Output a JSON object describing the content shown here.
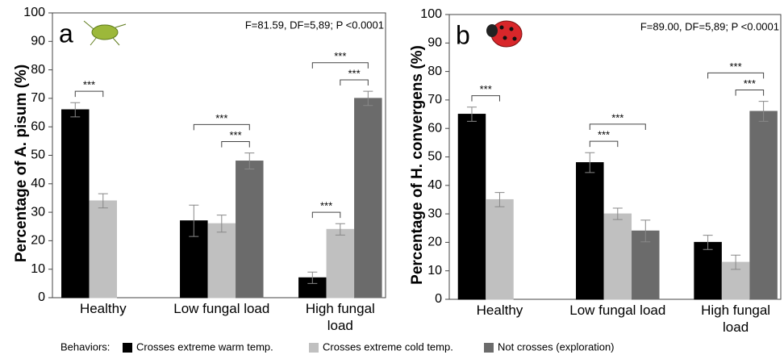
{
  "chart_data": [
    {
      "type": "bar",
      "panel": "a",
      "stat": "F=81.59, DF=5,89; P <0.0001",
      "ylabel": "Percentage of A. pisum (%)",
      "categories": [
        "Healthy",
        "Low fungal load",
        "High fungal load"
      ],
      "series": [
        {
          "name": "Crosses extreme warm temp.",
          "color": "#000000",
          "values": [
            66,
            27,
            7
          ],
          "errors": [
            2.5,
            5.5,
            2
          ]
        },
        {
          "name": "Crosses extreme cold temp.",
          "color": "#c0c0c0",
          "values": [
            34,
            26,
            24
          ],
          "errors": [
            2.5,
            3,
            2
          ]
        },
        {
          "name": "Not crosses (exploration)",
          "color": "#6b6b6b",
          "values": [
            0,
            48,
            70
          ],
          "errors": [
            0,
            2.8,
            2.5
          ]
        }
      ],
      "annotations": [
        {
          "text": "***",
          "category": 0,
          "from": 0,
          "to": 1
        },
        {
          "text": "***",
          "category": 1,
          "from": 1,
          "to": 2
        },
        {
          "text": "***",
          "category": 1,
          "from": 0,
          "to": 2
        },
        {
          "text": "***",
          "category": 2,
          "from": 0,
          "to": 1
        },
        {
          "text": "***",
          "category": 2,
          "from": 1,
          "to": 2
        },
        {
          "text": "***",
          "category": 2,
          "from": 0,
          "to": 2
        }
      ],
      "ylim": [
        0,
        100
      ],
      "yticks": [
        0,
        10,
        20,
        30,
        40,
        50,
        60,
        70,
        80,
        90,
        100
      ]
    },
    {
      "type": "bar",
      "panel": "b",
      "stat": "F=89.00, DF=5,89; P <0.0001",
      "ylabel": "Percentage of H. convergens (%)",
      "categories": [
        "Healthy",
        "Low fungal load",
        "High fungal load"
      ],
      "series": [
        {
          "name": "Crosses extreme warm temp.",
          "color": "#000000",
          "values": [
            65,
            48,
            20
          ],
          "errors": [
            2.5,
            3.5,
            2.5
          ]
        },
        {
          "name": "Crosses extreme cold temp.",
          "color": "#c0c0c0",
          "values": [
            35,
            30,
            13
          ],
          "errors": [
            2.5,
            2,
            2.5
          ]
        },
        {
          "name": "Not crosses (exploration)",
          "color": "#6b6b6b",
          "values": [
            0,
            24,
            66
          ],
          "errors": [
            0,
            3.8,
            3.5
          ]
        }
      ],
      "annotations": [
        {
          "text": "***",
          "category": 0,
          "from": 0,
          "to": 1
        },
        {
          "text": "***",
          "category": 1,
          "from": 0,
          "to": 1
        },
        {
          "text": "***",
          "category": 1,
          "from": 0,
          "to": 2
        },
        {
          "text": "***",
          "category": 2,
          "from": 1,
          "to": 2
        },
        {
          "text": "***",
          "category": 2,
          "from": 0,
          "to": 2
        }
      ],
      "ylim": [
        0,
        100
      ],
      "yticks": [
        0,
        10,
        20,
        30,
        40,
        50,
        60,
        70,
        80,
        90,
        100
      ]
    }
  ],
  "legend": {
    "title": "Behaviors:"
  }
}
